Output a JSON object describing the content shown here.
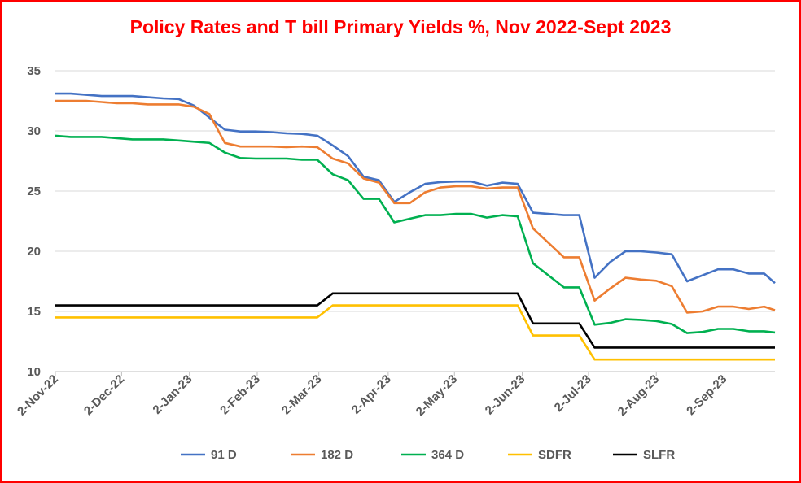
{
  "chart_data": {
    "type": "line",
    "title": "Policy Rates and T bill Primary Yields %, Nov 2022-Sept 2023",
    "xlabel": "",
    "ylabel": "",
    "ylim": [
      10,
      35
    ],
    "yticks": [
      10,
      15,
      20,
      25,
      30,
      35
    ],
    "grid": "horizontal",
    "legend": "bottom",
    "x_ticks": [
      {
        "label": "2-Nov-22",
        "week": 0
      },
      {
        "label": "2-Dec-22",
        "week": 4.3
      },
      {
        "label": "2-Jan-23",
        "week": 8.7
      },
      {
        "label": "2-Feb-23",
        "week": 13.1
      },
      {
        "label": "2-Mar-23",
        "week": 17.1
      },
      {
        "label": "2-Apr-23",
        "week": 21.6
      },
      {
        "label": "2-May-23",
        "week": 25.9
      },
      {
        "label": "2-Jun-23",
        "week": 30.3
      },
      {
        "label": "2-Jul-23",
        "week": 34.6
      },
      {
        "label": "2-Aug-23",
        "week": 39.0
      },
      {
        "label": "2-Sep-23",
        "week": 43.4
      }
    ],
    "x_max_week": 46.7,
    "series": [
      {
        "name": "91 D",
        "color": "#4472c4",
        "points": [
          [
            0,
            33.1
          ],
          [
            1,
            33.1
          ],
          [
            2,
            33.0
          ],
          [
            3,
            32.9
          ],
          [
            4,
            32.9
          ],
          [
            5,
            32.9
          ],
          [
            6,
            32.8
          ],
          [
            7,
            32.7
          ],
          [
            8,
            32.65
          ],
          [
            9,
            32.1
          ],
          [
            10,
            31.1
          ],
          [
            11,
            30.1
          ],
          [
            12,
            29.95
          ],
          [
            13,
            29.95
          ],
          [
            14,
            29.9
          ],
          [
            15,
            29.8
          ],
          [
            16,
            29.75
          ],
          [
            17,
            29.6
          ],
          [
            18,
            28.8
          ],
          [
            19,
            27.9
          ],
          [
            20,
            26.2
          ],
          [
            21,
            25.9
          ],
          [
            22,
            24.1
          ],
          [
            23,
            24.9
          ],
          [
            24,
            25.6
          ],
          [
            25,
            25.75
          ],
          [
            26,
            25.8
          ],
          [
            27,
            25.8
          ],
          [
            28,
            25.45
          ],
          [
            29,
            25.7
          ],
          [
            30,
            25.6
          ],
          [
            31,
            23.2
          ],
          [
            32,
            23.1
          ],
          [
            33,
            23.0
          ],
          [
            34,
            23.0
          ],
          [
            35,
            17.8
          ],
          [
            36,
            19.1
          ],
          [
            37,
            20.0
          ],
          [
            38,
            20.0
          ],
          [
            39,
            19.9
          ],
          [
            40,
            19.75
          ],
          [
            41,
            17.5
          ],
          [
            42,
            18.0
          ],
          [
            43,
            18.5
          ],
          [
            44,
            18.5
          ],
          [
            45,
            18.15
          ],
          [
            46,
            18.15
          ],
          [
            46.7,
            17.35
          ]
        ]
      },
      {
        "name": "182 D",
        "color": "#ed7d31",
        "points": [
          [
            0,
            32.5
          ],
          [
            1,
            32.5
          ],
          [
            2,
            32.5
          ],
          [
            3,
            32.4
          ],
          [
            4,
            32.3
          ],
          [
            5,
            32.3
          ],
          [
            6,
            32.2
          ],
          [
            7,
            32.2
          ],
          [
            8,
            32.2
          ],
          [
            9,
            32.0
          ],
          [
            10,
            31.4
          ],
          [
            11,
            29.0
          ],
          [
            12,
            28.7
          ],
          [
            13,
            28.7
          ],
          [
            14,
            28.7
          ],
          [
            15,
            28.65
          ],
          [
            16,
            28.7
          ],
          [
            17,
            28.65
          ],
          [
            18,
            27.7
          ],
          [
            19,
            27.3
          ],
          [
            20,
            26.05
          ],
          [
            21,
            25.7
          ],
          [
            22,
            24.0
          ],
          [
            23,
            24.0
          ],
          [
            24,
            24.9
          ],
          [
            25,
            25.3
          ],
          [
            26,
            25.4
          ],
          [
            27,
            25.4
          ],
          [
            28,
            25.2
          ],
          [
            29,
            25.3
          ],
          [
            30,
            25.3
          ],
          [
            31,
            21.9
          ],
          [
            32,
            20.7
          ],
          [
            33,
            19.5
          ],
          [
            34,
            19.5
          ],
          [
            35,
            15.9
          ],
          [
            36,
            16.9
          ],
          [
            37,
            17.8
          ],
          [
            38,
            17.65
          ],
          [
            39,
            17.55
          ],
          [
            40,
            17.1
          ],
          [
            41,
            14.9
          ],
          [
            42,
            15.0
          ],
          [
            43,
            15.4
          ],
          [
            44,
            15.4
          ],
          [
            45,
            15.2
          ],
          [
            46,
            15.4
          ],
          [
            46.7,
            15.1
          ]
        ]
      },
      {
        "name": "364 D",
        "color": "#00b050",
        "points": [
          [
            0,
            29.6
          ],
          [
            1,
            29.5
          ],
          [
            2,
            29.5
          ],
          [
            3,
            29.5
          ],
          [
            4,
            29.4
          ],
          [
            5,
            29.3
          ],
          [
            6,
            29.3
          ],
          [
            7,
            29.3
          ],
          [
            8,
            29.2
          ],
          [
            9,
            29.1
          ],
          [
            10,
            29.0
          ],
          [
            11,
            28.2
          ],
          [
            12,
            27.75
          ],
          [
            13,
            27.7
          ],
          [
            14,
            27.7
          ],
          [
            15,
            27.7
          ],
          [
            16,
            27.6
          ],
          [
            17,
            27.6
          ],
          [
            18,
            26.4
          ],
          [
            19,
            25.9
          ],
          [
            20,
            24.35
          ],
          [
            21,
            24.35
          ],
          [
            22,
            22.4
          ],
          [
            23,
            22.7
          ],
          [
            24,
            23.0
          ],
          [
            25,
            23.0
          ],
          [
            26,
            23.1
          ],
          [
            27,
            23.1
          ],
          [
            28,
            22.8
          ],
          [
            29,
            23.0
          ],
          [
            30,
            22.9
          ],
          [
            31,
            19.0
          ],
          [
            32,
            18.0
          ],
          [
            33,
            17.0
          ],
          [
            34,
            17.0
          ],
          [
            35,
            13.9
          ],
          [
            36,
            14.05
          ],
          [
            37,
            14.35
          ],
          [
            38,
            14.3
          ],
          [
            39,
            14.2
          ],
          [
            40,
            13.95
          ],
          [
            41,
            13.2
          ],
          [
            42,
            13.3
          ],
          [
            43,
            13.55
          ],
          [
            44,
            13.55
          ],
          [
            45,
            13.35
          ],
          [
            46,
            13.35
          ],
          [
            46.7,
            13.25
          ]
        ]
      },
      {
        "name": "SDFR",
        "color": "#ffc000",
        "points": [
          [
            0,
            14.5
          ],
          [
            17,
            14.5
          ],
          [
            18,
            15.5
          ],
          [
            30,
            15.5
          ],
          [
            31,
            13.0
          ],
          [
            34,
            13.0
          ],
          [
            35,
            11.0
          ],
          [
            46.7,
            11.0
          ]
        ]
      },
      {
        "name": "SLFR",
        "color": "#000000",
        "points": [
          [
            0,
            15.5
          ],
          [
            17,
            15.5
          ],
          [
            18,
            16.5
          ],
          [
            30,
            16.5
          ],
          [
            31,
            14.0
          ],
          [
            34,
            14.0
          ],
          [
            35,
            12.0
          ],
          [
            46.7,
            12.0
          ]
        ]
      }
    ]
  }
}
